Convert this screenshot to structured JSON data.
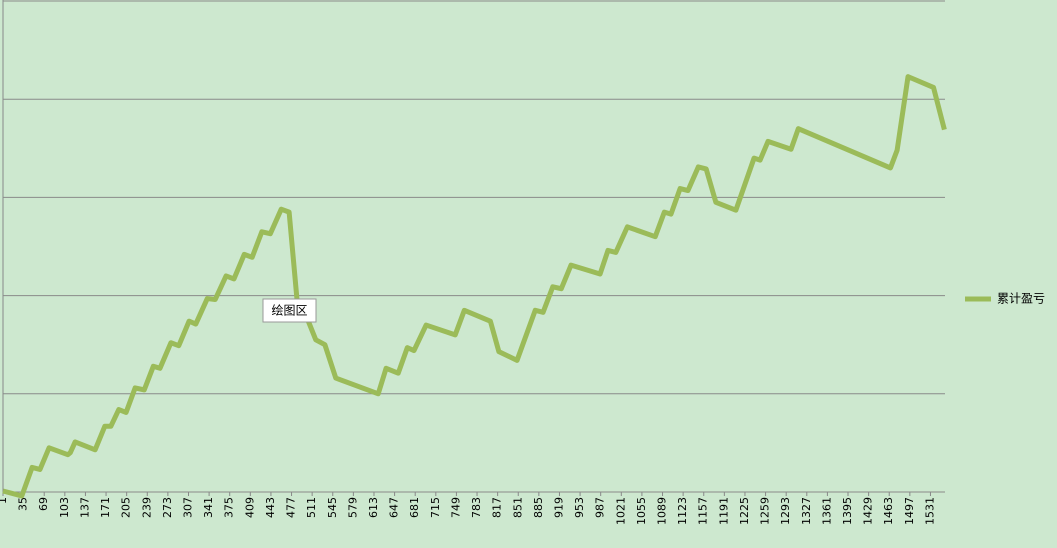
{
  "chart_data": {
    "type": "line",
    "x": [
      1,
      32,
      49,
      62,
      77,
      108,
      112,
      120,
      153,
      169,
      179,
      192,
      204,
      219,
      234,
      249,
      260,
      278,
      291,
      308,
      319,
      338,
      351,
      369,
      382,
      399,
      412,
      428,
      442,
      460,
      473,
      486,
      504,
      517,
      532,
      550,
      620,
      633,
      653,
      668,
      679,
      699,
      747,
      762,
      805,
      819,
      849,
      879,
      892,
      908,
      922,
      938,
      986,
      999,
      1012,
      1031,
      1077,
      1092,
      1103,
      1118,
      1131,
      1148,
      1161,
      1177,
      1210,
      1240,
      1250,
      1263,
      1301,
      1313,
      1465,
      1476,
      1494,
      1536,
      1554
    ],
    "series": [
      {
        "name": "累计盈亏",
        "color": "#9bbb59",
        "values": [
          0.01,
          -0.04,
          0.25,
          0.23,
          0.45,
          0.38,
          0.4,
          0.51,
          0.43,
          0.67,
          0.67,
          0.84,
          0.81,
          1.06,
          1.04,
          1.28,
          1.26,
          1.52,
          1.49,
          1.74,
          1.71,
          1.97,
          1.96,
          2.2,
          2.17,
          2.42,
          2.39,
          2.65,
          2.63,
          2.88,
          2.85,
          1.96,
          1.75,
          1.55,
          1.5,
          1.16,
          1.0,
          1.26,
          1.21,
          1.47,
          1.44,
          1.7,
          1.6,
          1.85,
          1.74,
          1.43,
          1.34,
          1.85,
          1.83,
          2.09,
          2.07,
          2.31,
          2.22,
          2.46,
          2.44,
          2.7,
          2.6,
          2.85,
          2.83,
          3.09,
          3.07,
          3.31,
          3.29,
          2.95,
          2.87,
          3.4,
          3.38,
          3.57,
          3.49,
          3.7,
          3.3,
          3.48,
          4.23,
          4.12,
          3.69
        ]
      }
    ],
    "xlim": [
      1,
      1555
    ],
    "xticks": [
      1,
      35,
      69,
      103,
      137,
      171,
      205,
      239,
      273,
      307,
      341,
      375,
      409,
      443,
      477,
      511,
      545,
      579,
      613,
      647,
      681,
      715,
      749,
      783,
      817,
      851,
      885,
      919,
      953,
      987,
      1021,
      1055,
      1089,
      1123,
      1157,
      1191,
      1225,
      1259,
      1293,
      1327,
      1361,
      1395,
      1429,
      1463,
      1497,
      1531
    ],
    "ylim": [
      0,
      5
    ],
    "gridlines": [
      0,
      1,
      2,
      3,
      4,
      5
    ],
    "legend": "right",
    "tooltip": "绘图区"
  }
}
